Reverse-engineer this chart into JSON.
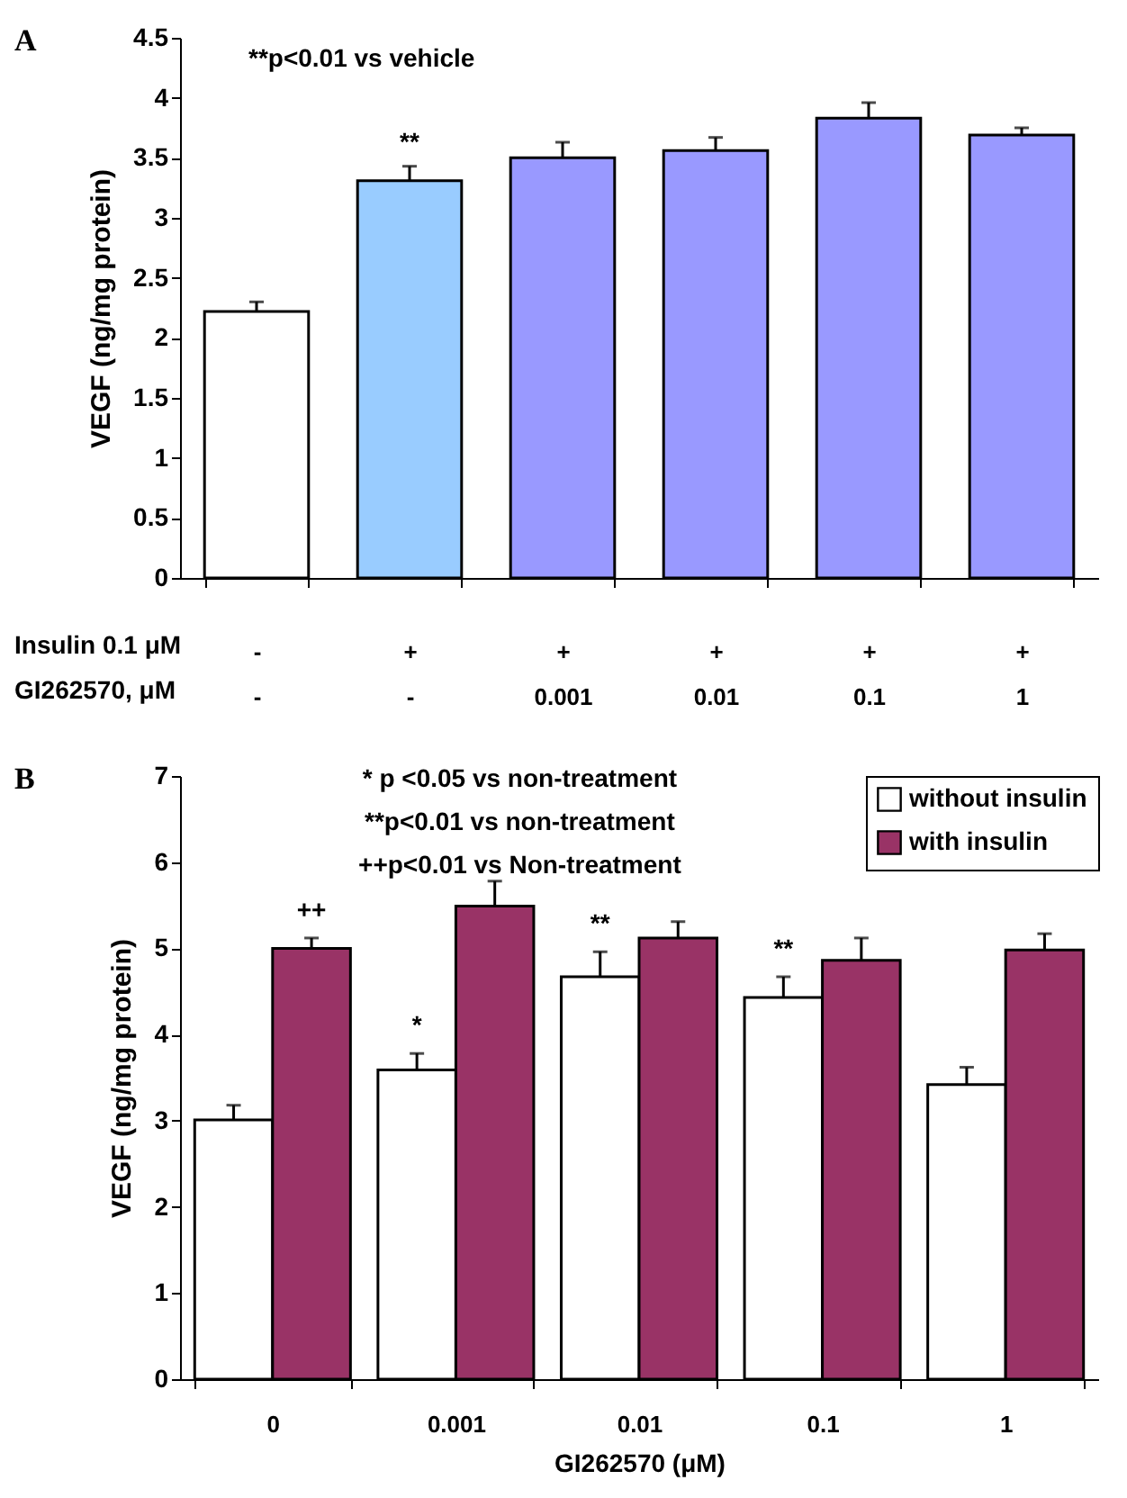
{
  "chart_data": [
    {
      "type": "bar",
      "title": "A",
      "ylabel": "VEGF (ng/mg protein)",
      "categories": [
        "-\n-",
        "+\n-",
        "+\n0.001",
        "+\n0.01",
        "+\n0.1",
        "+\n1"
      ],
      "values": [
        2.22,
        3.31,
        3.5,
        3.56,
        3.83,
        3.69
      ],
      "colors": [
        "#ffffff",
        "#99ccff",
        "#9999ff",
        "#9999ff",
        "#9999ff",
        "#9999ff"
      ],
      "errors": [
        [
          2.22,
          2.3
        ],
        [
          3.31,
          3.43
        ],
        [
          3.5,
          3.63
        ],
        [
          3.56,
          3.67
        ],
        [
          3.83,
          3.96
        ],
        [
          3.69,
          3.75
        ]
      ],
      "ylim": [
        0,
        4.5
      ],
      "yticks": [
        0,
        0.5,
        1,
        1.5,
        2,
        2.5,
        3,
        3.5,
        4,
        4.5
      ],
      "annotations": [
        "**p<0.01 vs vehicle",
        "Insulin 0.1 μM",
        "GI262570, μM",
        {
          "text": "**",
          "x": "+\n-",
          "y": 3.43
        }
      ]
    },
    {
      "type": "bar",
      "title": "B",
      "xlabel": "GI262570 (μM)",
      "ylabel": "VEGF (ng/mg protein)",
      "categories": [
        "0",
        "0.001",
        "0.01",
        "0.1",
        "1"
      ],
      "series": [
        {
          "name": "without insulin",
          "color": "#ffffff",
          "values": [
            3.01,
            3.59,
            4.67,
            4.43,
            3.42
          ],
          "errors": [
            [
              3.01,
              3.18
            ],
            [
              3.59,
              3.78
            ],
            [
              4.67,
              4.96
            ],
            [
              4.43,
              4.67
            ],
            [
              3.42,
              3.62
            ]
          ]
        },
        {
          "name": "with insulin",
          "color": "#993366",
          "values": [
            5.0,
            5.49,
            5.12,
            4.86,
            4.98
          ],
          "errors": [
            [
              5.0,
              5.12
            ],
            [
              5.49,
              5.78
            ],
            [
              5.12,
              5.31
            ],
            [
              4.86,
              5.12
            ],
            [
              4.98,
              5.17
            ]
          ]
        }
      ],
      "ylim": [
        0,
        7
      ],
      "yticks": [
        0,
        1,
        2,
        3,
        4,
        5,
        6,
        7
      ],
      "legend": "top right",
      "annotations": [
        "* p <0.05 vs non-treatment",
        "**p<0.01 vs non-treatment",
        "++p<0.01 vs Non-treatment",
        {
          "text": "++",
          "x": "0",
          "y": 5.0
        },
        {
          "text": "*",
          "x": "0.001",
          "y": 3.78
        },
        {
          "text": "**",
          "x": "0.01",
          "y": 4.96
        },
        {
          "text": "**",
          "x": "0.1",
          "y": 4.67
        }
      ]
    }
  ]
}
